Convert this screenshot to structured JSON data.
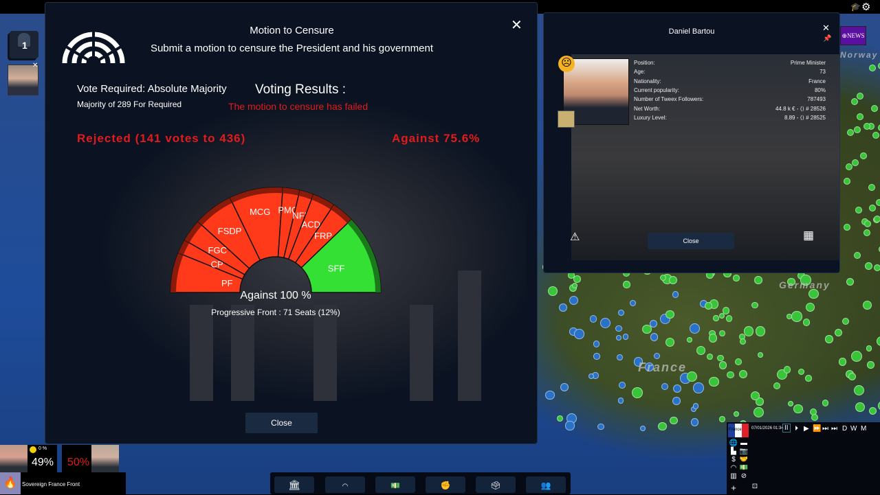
{
  "map": {
    "labels": [
      "Norway",
      "Germany",
      "France"
    ]
  },
  "dialog": {
    "title": "Motion to Censure",
    "subtitle": "Submit a motion to censure the President and his government",
    "vote_required": "Vote Required: Absolute Majority",
    "majority": "Majority of 289 For Required",
    "results_heading": "Voting Results :",
    "results_status": "The motion to censure has failed",
    "rejected": "Rejected (141 votes to 436)",
    "against_pct": "Against 75.6%",
    "hover_vote": "Against 100 %",
    "hover_party": "Progressive Front : 71 Seats (12%)",
    "close_label": "Close",
    "colors": {
      "against": "#ff3a1a",
      "for": "#33e033",
      "alert": "#e21b1b"
    }
  },
  "chart_data": {
    "type": "parliament",
    "total_seats": 577,
    "parties": [
      {
        "name": "PF",
        "seats": 71,
        "vote": "against"
      },
      {
        "name": "CP",
        "seats": 25,
        "vote": "against"
      },
      {
        "name": "FGC",
        "seats": 40,
        "vote": "against"
      },
      {
        "name": "FSDP",
        "seats": 70,
        "vote": "against"
      },
      {
        "name": "MCG",
        "seats": 95,
        "vote": "against"
      },
      {
        "name": "PMO",
        "seats": 30,
        "vote": "against"
      },
      {
        "name": "NFI",
        "seats": 25,
        "vote": "against"
      },
      {
        "name": "ACD",
        "seats": 40,
        "vote": "against"
      },
      {
        "name": "FRP",
        "seats": 40,
        "vote": "against"
      },
      {
        "name": "SFF",
        "seats": 141,
        "vote": "for"
      }
    ]
  },
  "character": {
    "name": "Daniel Bartou",
    "mood": "sad",
    "fields": [
      {
        "label": "Position:",
        "value": "Prime Minister"
      },
      {
        "label": "Age:",
        "value": "73"
      },
      {
        "label": "Nationality:",
        "value": "France"
      },
      {
        "label": "Current popularity:",
        "value": "80%"
      },
      {
        "label": "Number of Tweex Followers:",
        "value": "787493"
      },
      {
        "label": "Net Worth:",
        "value": "44.8 k € - ⟨⟩ # 28526"
      },
      {
        "label": "Luxury Level:",
        "value": "8.89 - ⟨⟩ # 28525"
      }
    ],
    "close_label": "Close"
  },
  "left": {
    "queue_count": "1"
  },
  "news_label": "NEWS",
  "hud": {
    "mood_value": "0 %",
    "player_pct": "49%",
    "opponent_pct": "50%",
    "party": "Sovereign France Front"
  },
  "minimap": {
    "country": "France",
    "datetime": "07/01/2026 01:34",
    "speeds": [
      "D",
      "W",
      "M"
    ]
  }
}
